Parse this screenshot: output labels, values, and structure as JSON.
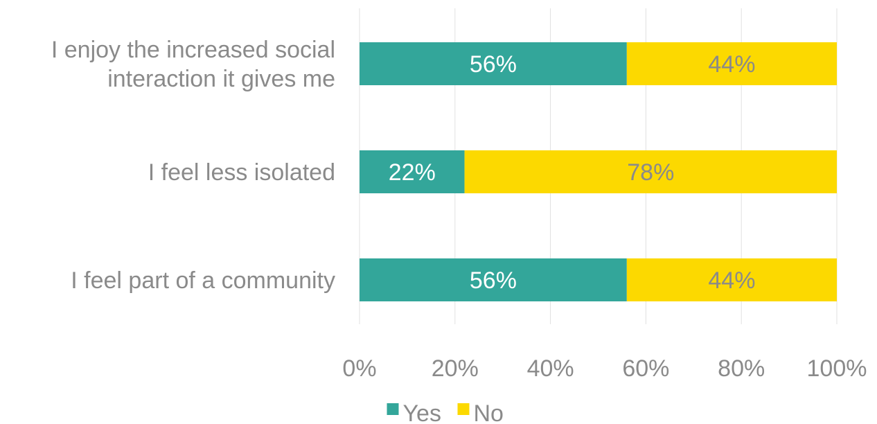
{
  "chart_data": {
    "type": "bar",
    "orientation": "horizontal",
    "stacked": true,
    "categories": [
      [
        "I enjoy the increased social",
        "interaction it gives me"
      ],
      [
        "I feel less isolated"
      ],
      [
        "I feel part of a community"
      ]
    ],
    "series": [
      {
        "name": "Yes",
        "values": [
          56,
          22,
          56
        ],
        "labels": [
          "56%",
          "22%",
          "56%"
        ],
        "color": "#33a69a",
        "label_color": "#ffffff"
      },
      {
        "name": "No",
        "values": [
          44,
          78,
          44
        ],
        "labels": [
          "44%",
          "78%",
          "44%"
        ],
        "color": "#fcd900",
        "label_color": "#8a8a8a"
      }
    ],
    "xlim": [
      0,
      100
    ],
    "xticks": [
      0,
      20,
      40,
      60,
      80,
      100
    ],
    "xtick_labels": [
      "0%",
      "20%",
      "40%",
      "60%",
      "80%",
      "100%"
    ],
    "grid": true,
    "grid_color": "#e0e0e0",
    "legend_position": "bottom",
    "title": "",
    "xlabel": "",
    "ylabel": ""
  }
}
